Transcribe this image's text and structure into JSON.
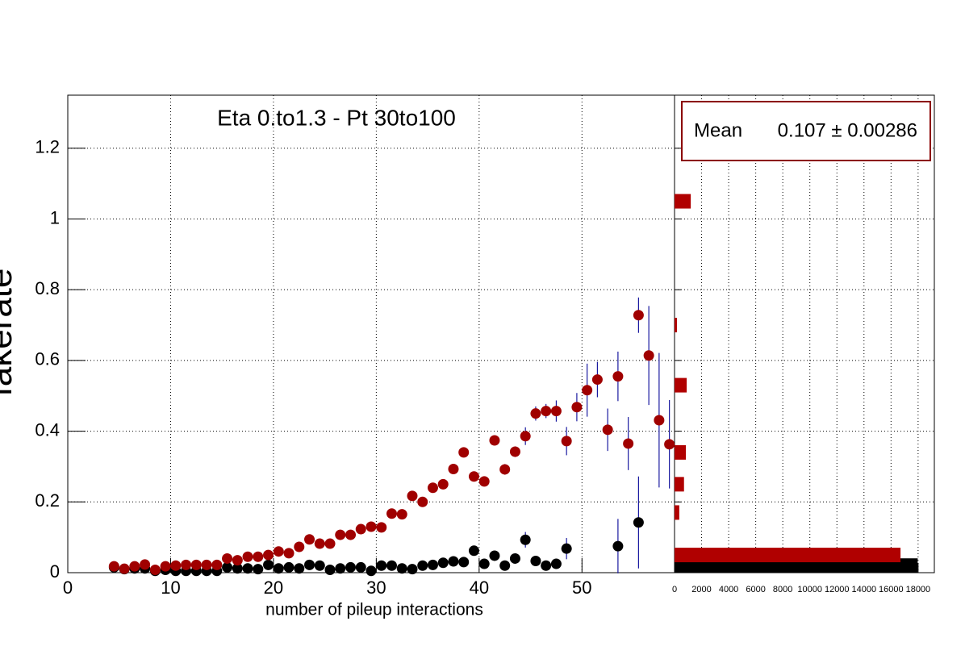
{
  "chart_data": [
    {
      "type": "scatter",
      "title": "Eta 0.to1.3 - Pt 30to100",
      "xlabel": "number of pileup interactions",
      "ylabel": "fakerate",
      "xlim": [
        0,
        59
      ],
      "xticks": [
        0,
        10,
        20,
        30,
        40,
        50
      ],
      "ylim": [
        0,
        1.35
      ],
      "yticks": [
        0,
        0.2,
        0.4,
        0.6,
        0.8,
        1,
        1.2
      ],
      "grid": true,
      "error_color": "#1a1aa0",
      "series": [
        {
          "color": "#000000",
          "x": [
            4.5,
            5.5,
            6.5,
            7.5,
            8.5,
            9.5,
            10.5,
            11.5,
            12.5,
            13.5,
            14.5,
            15.5,
            16.5,
            17.5,
            18.5,
            19.5,
            20.5,
            21.5,
            22.5,
            23.5,
            24.5,
            25.5,
            26.5,
            27.5,
            28.5,
            29.5,
            30.5,
            31.5,
            32.5,
            33.5,
            34.5,
            35.5,
            36.5,
            37.5,
            38.5,
            39.5,
            40.5,
            41.5,
            42.5,
            43.5,
            44.5,
            45.5,
            46.5,
            47.5,
            48.5,
            49.5,
            50.5,
            51.5,
            52.5,
            53.5,
            54.5,
            55.5,
            56.5,
            57.5,
            58.5
          ],
          "values": [
            0.015,
            0.01,
            0.012,
            0.012,
            0.005,
            0.008,
            0.005,
            0.005,
            0.005,
            0.005,
            0.005,
            0.015,
            0.012,
            0.012,
            0.01,
            0.022,
            0.012,
            0.015,
            0.012,
            0.022,
            0.02,
            0.008,
            0.012,
            0.015,
            0.015,
            0.005,
            0.02,
            0.02,
            0.012,
            0.01,
            0.02,
            0.022,
            0.028,
            0.032,
            0.03,
            0.062,
            0.025,
            0.048,
            0.02,
            0.04,
            0.093,
            0.033,
            0.02,
            0.025,
            0.068,
            null,
            null,
            null,
            null,
            0.075,
            null,
            0.142,
            null,
            null,
            null
          ],
          "errors": [
            0.004,
            0.004,
            0.004,
            0.004,
            0.004,
            0.004,
            0.004,
            0.004,
            0.004,
            0.004,
            0.004,
            0.004,
            0.004,
            0.004,
            0.004,
            0.004,
            0.004,
            0.004,
            0.004,
            0.004,
            0.004,
            0.004,
            0.004,
            0.004,
            0.004,
            0.004,
            0.004,
            0.004,
            0.004,
            0.004,
            0.004,
            0.004,
            0.004,
            0.004,
            0.004,
            0.01,
            0.004,
            0.01,
            0.004,
            0.015,
            0.022,
            0.012,
            0.01,
            0.012,
            0.03,
            null,
            null,
            null,
            null,
            0.077,
            null,
            0.13,
            null,
            null,
            null
          ]
        },
        {
          "color": "#a00000",
          "x": [
            4.5,
            5.5,
            6.5,
            7.5,
            8.5,
            9.5,
            10.5,
            11.5,
            12.5,
            13.5,
            14.5,
            15.5,
            16.5,
            17.5,
            18.5,
            19.5,
            20.5,
            21.5,
            22.5,
            23.5,
            24.5,
            25.5,
            26.5,
            27.5,
            28.5,
            29.5,
            30.5,
            31.5,
            32.5,
            33.5,
            34.5,
            35.5,
            36.5,
            37.5,
            38.5,
            39.5,
            40.5,
            41.5,
            42.5,
            43.5,
            44.5,
            45.5,
            46.5,
            47.5,
            48.5,
            49.5,
            50.5,
            51.5,
            52.5,
            53.5,
            54.5,
            55.5,
            56.5,
            57.5,
            58.5
          ],
          "values": [
            0.018,
            0.011,
            0.018,
            0.023,
            0.008,
            0.018,
            0.02,
            0.022,
            0.022,
            0.022,
            0.022,
            0.04,
            0.035,
            0.045,
            0.045,
            0.05,
            0.06,
            0.055,
            0.073,
            0.094,
            0.082,
            0.082,
            0.107,
            0.107,
            0.123,
            0.13,
            0.128,
            0.167,
            0.165,
            0.217,
            0.2,
            0.24,
            0.25,
            0.293,
            0.34,
            0.272,
            0.258,
            0.374,
            0.292,
            0.342,
            0.386,
            0.45,
            0.457,
            0.457,
            0.372,
            0.468,
            0.516,
            0.546,
            0.404,
            0.555,
            0.365,
            0.728,
            0.614,
            0.431,
            0.363
          ],
          "errors": [
            0.005,
            0.005,
            0.005,
            0.005,
            0.005,
            0.005,
            0.005,
            0.005,
            0.005,
            0.005,
            0.005,
            0.005,
            0.005,
            0.005,
            0.005,
            0.005,
            0.005,
            0.005,
            0.005,
            0.005,
            0.005,
            0.005,
            0.005,
            0.005,
            0.005,
            0.005,
            0.005,
            0.008,
            0.008,
            0.008,
            0.008,
            0.008,
            0.008,
            0.008,
            0.008,
            0.008,
            0.008,
            0.012,
            0.015,
            0.015,
            0.025,
            0.02,
            0.02,
            0.03,
            0.04,
            0.04,
            0.075,
            0.05,
            0.06,
            0.07,
            0.075,
            0.05,
            0.14,
            0.19,
            0.125
          ]
        }
      ]
    },
    {
      "type": "barh",
      "xlim": [
        0,
        19200
      ],
      "xticks": [
        0,
        2000,
        4000,
        6000,
        8000,
        10000,
        12000,
        14000,
        16000,
        18000
      ],
      "ylim": [
        0,
        1.35
      ],
      "yticks": [
        0,
        0.2,
        0.4,
        0.6,
        0.8,
        1,
        1.2
      ],
      "grid": true,
      "stats": {
        "label": "Mean",
        "value": "0.107 ± 0.00286"
      },
      "series": [
        {
          "color": "#000000",
          "y": [
            0.02
          ],
          "values": [
            17970
          ]
        },
        {
          "color": "#b00000",
          "y": [
            0.05,
            0.17,
            0.25,
            0.34,
            0.53,
            0.7,
            1.05
          ],
          "values": [
            16700,
            350,
            700,
            840,
            900,
            180,
            1200
          ]
        }
      ]
    }
  ]
}
